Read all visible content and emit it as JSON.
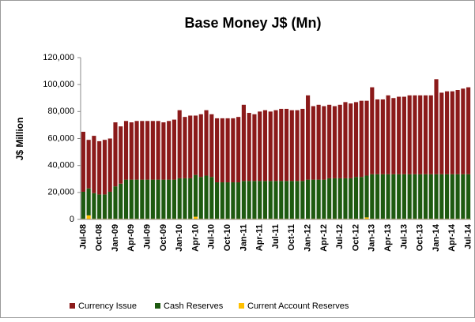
{
  "chart_data": {
    "type": "bar",
    "stacked": true,
    "title": "Base Money J$ (Mn)",
    "y_label": "J$ Million",
    "categories": [
      "Jul-08",
      null,
      null,
      "Oct-08",
      null,
      null,
      "Jan-09",
      null,
      null,
      "Apr-09",
      null,
      null,
      "Jul-09",
      null,
      null,
      "Oct-09",
      null,
      null,
      "Jan-10",
      null,
      null,
      "Apr-10",
      null,
      null,
      "Jul-10",
      null,
      null,
      "Oct-10",
      null,
      null,
      "Jan-11",
      null,
      null,
      "Apr-11",
      null,
      null,
      "Jul-11",
      null,
      null,
      "Oct-11",
      null,
      null,
      "Jan-12",
      null,
      null,
      "Apr-12",
      null,
      null,
      "Jul-12",
      null,
      null,
      "Oct-12",
      null,
      null,
      "Jan-13",
      null,
      null,
      "Apr-13",
      null,
      null,
      "Jul-13",
      null,
      null,
      "Oct-13",
      null,
      null,
      "Jan-14",
      null,
      null,
      "Apr-14",
      null,
      null,
      "Jul-14"
    ],
    "series": [
      {
        "name": "Currency Issue",
        "color": "#8b1a1a",
        "values": [
          44500,
          36000,
          42500,
          39500,
          40500,
          39500,
          47500,
          42500,
          43500,
          42500,
          43500,
          43500,
          43500,
          43500,
          43500,
          42500,
          43500,
          44500,
          50500,
          45500,
          46500,
          44000,
          46500,
          48500,
          46500,
          47500,
          47500,
          47500,
          47500,
          48500,
          56500,
          50500,
          49500,
          51500,
          52500,
          51500,
          52500,
          53500,
          53500,
          52500,
          52500,
          53500,
          62500,
          54500,
          55500,
          54500,
          54500,
          53500,
          54500,
          56500,
          55500,
          55500,
          56500,
          55500,
          64500,
          55500,
          55500,
          58500,
          56500,
          57500,
          57500,
          58500,
          58500,
          58500,
          58500,
          58500,
          70500,
          60500,
          61500,
          61500,
          62500,
          63500,
          64500
        ]
      },
      {
        "name": "Cash Reserves",
        "color": "#1e5a10",
        "values": [
          20000,
          20000,
          19000,
          18000,
          18000,
          20000,
          24000,
          26000,
          29000,
          29000,
          29000,
          29000,
          29000,
          29000,
          29000,
          29000,
          29000,
          29000,
          30000,
          30000,
          30000,
          31000,
          31000,
          32000,
          31000,
          27000,
          27000,
          27000,
          27000,
          27000,
          28000,
          28000,
          28000,
          28000,
          28000,
          28000,
          28000,
          28000,
          28000,
          28000,
          28000,
          28000,
          29000,
          29000,
          29000,
          29000,
          30000,
          30000,
          30000,
          30000,
          30000,
          31000,
          31000,
          31000,
          33000,
          33000,
          33000,
          33000,
          33000,
          33000,
          33000,
          33000,
          33000,
          33000,
          33000,
          33000,
          33000,
          33000,
          33000,
          33000,
          33000,
          33000,
          33000
        ]
      },
      {
        "name": "Current Account Reserves",
        "color": "#ffc000",
        "values": [
          500,
          3000,
          500,
          500,
          500,
          500,
          500,
          500,
          500,
          500,
          500,
          500,
          500,
          500,
          500,
          500,
          500,
          500,
          500,
          500,
          500,
          2000,
          500,
          500,
          500,
          500,
          500,
          500,
          500,
          500,
          500,
          500,
          500,
          500,
          500,
          500,
          500,
          500,
          500,
          500,
          500,
          500,
          500,
          500,
          500,
          500,
          500,
          500,
          500,
          500,
          500,
          500,
          500,
          1500,
          500,
          500,
          500,
          500,
          500,
          500,
          500,
          500,
          500,
          500,
          500,
          500,
          500,
          500,
          500,
          500,
          500,
          500,
          500
        ]
      }
    ],
    "ylim": [
      0,
      120000
    ],
    "yticks": [
      0,
      {
        "value": 20000,
        "label": "20,000"
      },
      {
        "value": 40000,
        "label": "40,000"
      },
      {
        "value": 60000,
        "label": "60,000"
      },
      {
        "value": 80000,
        "label": "80,000"
      },
      {
        "value": 100000,
        "label": "100,000"
      },
      {
        "value": 120000,
        "label": "120,000"
      }
    ],
    "grid": false,
    "legend": "bottom"
  }
}
